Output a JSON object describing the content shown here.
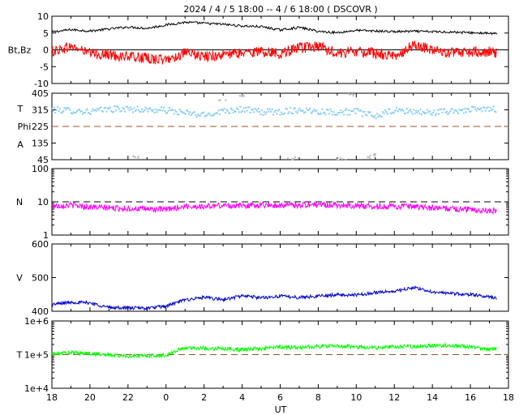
{
  "title": "2024 /  4 /  5   18:00 --  4 /  6   18:00 ( DSCOVR )",
  "x_axis": {
    "label": "UT",
    "tick_labels": [
      "18",
      "20",
      "22",
      "0",
      "2",
      "4",
      "6",
      "8",
      "10",
      "12",
      "14",
      "16",
      "18"
    ],
    "hours_start": 18,
    "hours_end": 42
  },
  "colors": {
    "bt": "#000000",
    "bz": "#ff0000",
    "theta": "#87cefa",
    "phi": "#c0c0c0",
    "phi_accent": "#ff69b4",
    "density": "#ff00ff",
    "speed": "#0000cd",
    "temperature": "#00ff00",
    "reference": "#a0522d",
    "dashed_black": "#000000"
  },
  "chart_data": [
    {
      "type": "line",
      "panel": "magnetic-field",
      "ylabel": "Bt,Bz",
      "ylim": [
        -10,
        10
      ],
      "ytick_labels": [
        "10",
        "5",
        "0",
        "-5",
        "-10"
      ],
      "ytick_values": [
        10,
        5,
        0,
        -5,
        -10
      ],
      "reference_line": 0,
      "series": [
        {
          "key": "bt",
          "x": [
            18,
            19,
            20,
            21,
            22,
            23,
            24,
            25,
            26,
            27,
            28,
            29,
            30,
            31,
            32,
            33,
            34,
            35,
            36,
            37,
            38,
            39,
            40,
            41,
            41.4
          ],
          "y": [
            5.3,
            6,
            5.6,
            6.2,
            6.8,
            6.4,
            7.4,
            8.2,
            7.9,
            7.6,
            7.1,
            6.9,
            5.9,
            6.7,
            5.5,
            5.1,
            5.8,
            5.6,
            5.4,
            5.5,
            5.4,
            5.3,
            5.1,
            4.9,
            4.8
          ]
        },
        {
          "key": "bz",
          "x": [
            18,
            19,
            20,
            21,
            22,
            23,
            24,
            25,
            26,
            27,
            28,
            29,
            30,
            31,
            32,
            33,
            34,
            35,
            36,
            37,
            38,
            39,
            40,
            41,
            41.4
          ],
          "y": [
            -0.5,
            1,
            -1,
            -1.5,
            -2,
            -2.5,
            -3,
            -1,
            -2,
            -1.5,
            -1,
            -0.5,
            -1,
            0.5,
            1,
            -1,
            -0.5,
            -1,
            -2,
            1.5,
            0,
            -1,
            -0.5,
            -0.5,
            -1
          ]
        }
      ]
    },
    {
      "type": "scatter",
      "panel": "field-angles",
      "ylabel_lines": [
        "T",
        "Phi",
        "A"
      ],
      "ylim": [
        45,
        405
      ],
      "ytick_labels": [
        "405",
        "315",
        "225",
        "135",
        "45"
      ],
      "ytick_values": [
        405,
        315,
        225,
        135,
        45
      ],
      "reference_line": 225,
      "series": [
        {
          "key": "theta",
          "x": [
            18,
            19,
            20,
            21,
            22,
            23,
            24,
            25,
            26,
            27,
            28,
            29,
            30,
            31,
            32,
            33,
            34,
            35,
            36,
            37,
            38,
            39,
            40,
            41,
            41.4
          ],
          "y": [
            315,
            312,
            305,
            318,
            320,
            315,
            312,
            298,
            285,
            310,
            318,
            303,
            305,
            315,
            308,
            302,
            306,
            280,
            312,
            305,
            300,
            308,
            315,
            318,
            318
          ]
        },
        {
          "key": "phi",
          "x": [
            22.4,
            26.9,
            28.1,
            30.6,
            33.2,
            33.8,
            34.8,
            34.9
          ],
          "y": [
            60,
            370,
            395,
            52,
            50,
            395,
            55,
            70
          ]
        }
      ]
    },
    {
      "type": "line",
      "panel": "density",
      "ylabel": "N",
      "yscale": "log",
      "ylim": [
        1,
        100
      ],
      "ytick_labels": [
        "100",
        "10",
        "1"
      ],
      "ytick_values": [
        100,
        10,
        1
      ],
      "reference_line": 10,
      "series": [
        {
          "key": "density",
          "x": [
            18,
            19,
            20,
            21,
            22,
            23,
            24,
            25,
            26,
            27,
            28,
            29,
            30,
            31,
            32,
            33,
            34,
            35,
            36,
            37,
            38,
            39,
            40,
            41,
            41.4
          ],
          "y": [
            7.5,
            8.0,
            7.0,
            6.5,
            6.3,
            6.1,
            5.8,
            7.3,
            7.2,
            7.8,
            7.6,
            8.2,
            7.8,
            8.1,
            8.3,
            8.0,
            7.7,
            7.2,
            7.4,
            7.0,
            6.5,
            6.2,
            5.9,
            5.5,
            5.3
          ]
        }
      ]
    },
    {
      "type": "line",
      "panel": "speed",
      "ylabel": "V",
      "ylim": [
        400,
        600
      ],
      "ytick_labels": [
        "600",
        "500",
        "400"
      ],
      "ytick_values": [
        600,
        500,
        400
      ],
      "series": [
        {
          "key": "speed",
          "x": [
            18,
            19,
            20,
            21,
            22,
            23,
            24,
            25,
            26,
            27,
            28,
            29,
            30,
            31,
            32,
            33,
            34,
            35,
            36,
            37,
            38,
            39,
            40,
            41,
            41.4
          ],
          "y": [
            420,
            427,
            425,
            411,
            410,
            409,
            415,
            434,
            441,
            434,
            446,
            440,
            445,
            441,
            445,
            449,
            448,
            456,
            459,
            470,
            458,
            452,
            450,
            442,
            438
          ]
        }
      ]
    },
    {
      "type": "line",
      "panel": "temperature",
      "ylabel": "T",
      "yscale": "log",
      "ylim": [
        10000,
        1000000
      ],
      "ytick_labels": [
        "1e+6",
        "1e+5",
        "1e+4"
      ],
      "ytick_values": [
        1000000,
        100000,
        10000
      ],
      "reference_line": 100000,
      "series": [
        {
          "key": "temperature",
          "x": [
            18,
            19,
            20,
            21,
            22,
            23,
            24,
            25,
            26,
            27,
            28,
            29,
            30,
            31,
            32,
            33,
            34,
            35,
            36,
            37,
            38,
            39,
            40,
            41,
            41.4
          ],
          "y": [
            105000,
            115000,
            108000,
            97000,
            90000,
            92000,
            95000,
            160000,
            155000,
            150000,
            140000,
            150000,
            170000,
            160000,
            175000,
            180000,
            170000,
            160000,
            170000,
            175000,
            185000,
            190000,
            170000,
            140000,
            150000
          ]
        }
      ]
    }
  ]
}
